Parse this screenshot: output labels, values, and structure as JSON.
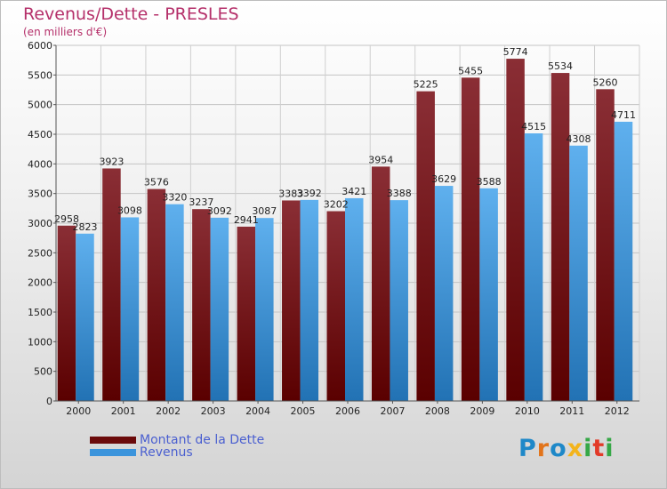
{
  "header": {
    "title": "Revenus/Dette - PRESLES",
    "subtitle": "(en milliers d'€)"
  },
  "legend": {
    "items": [
      {
        "label": "Montant de la Dette",
        "color": "#6b0a0a"
      },
      {
        "label": "Revenus",
        "color": "#3b94dc"
      }
    ]
  },
  "logo": {
    "text": "Proxiti",
    "letter_colors": [
      "#1e88c8",
      "#e2741b",
      "#1e88c8",
      "#f3b41b",
      "#36a847",
      "#e23a28",
      "#36a847"
    ]
  },
  "chart_data": {
    "type": "bar",
    "categories": [
      "2000",
      "2001",
      "2002",
      "2003",
      "2004",
      "2005",
      "2006",
      "2007",
      "2008",
      "2009",
      "2010",
      "2011",
      "2012"
    ],
    "series": [
      {
        "name": "Montant de la Dette",
        "values": [
          2958,
          3923,
          3576,
          3237,
          2941,
          3383,
          3202,
          3954,
          5225,
          5455,
          5774,
          5534,
          5260
        ],
        "value_labels": [
          "2958",
          "3923",
          "3576",
          "3237",
          "2941",
          "3383",
          "3202",
          "3954",
          "5225",
          "5455",
          "5774",
          "5534",
          "5260"
        ],
        "color_top": "#8a2e35",
        "color_bottom": "#5a0000"
      },
      {
        "name": "Revenus",
        "values": [
          2823,
          3098,
          3320,
          3092,
          3087,
          3392,
          3421,
          3388,
          3629,
          3588,
          4515,
          4308,
          4711
        ],
        "value_labels": [
          "2823",
          "3098",
          "3320",
          "3092",
          "3087",
          "3392",
          "3421",
          "3388",
          "3629",
          "3588",
          "4515",
          "4308",
          "4711"
        ],
        "color_top": "#5fb0ee",
        "color_bottom": "#2272b4"
      }
    ],
    "ylim": [
      0,
      6000
    ],
    "yticks": [
      0,
      500,
      1000,
      1500,
      2000,
      2500,
      3000,
      3500,
      4000,
      4500,
      5000,
      5500,
      6000
    ],
    "grid": true,
    "legend_position": "bottom-left"
  }
}
